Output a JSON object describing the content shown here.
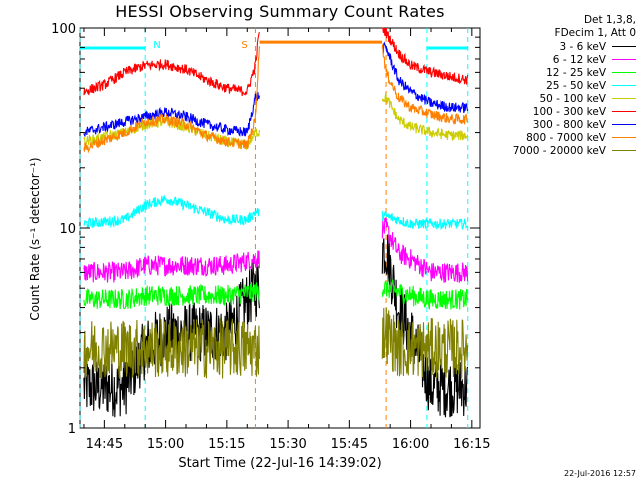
{
  "chart_data": {
    "type": "line",
    "title": "HESSI Observing Summary Count Rates",
    "xlabel": "Start Time (22-Jul-16 14:39:02)",
    "ylabel": "Count Rate (s⁻¹ detector⁻¹)",
    "yscale": "log",
    "ylim": [
      1,
      100
    ],
    "xlim": [
      "14:39:02",
      "16:17:00"
    ],
    "x_ticks": [
      "14:45",
      "15:00",
      "15:15",
      "15:30",
      "15:45",
      "16:00",
      "16:15"
    ],
    "y_ticks": [
      "1",
      "10",
      "100"
    ],
    "legend_header": [
      "Det 1,3,8,",
      "FDecim 1, Att 0"
    ],
    "legend_position": "outside-right",
    "markers": [
      {
        "label": "N",
        "time": "14:55",
        "color": "#00ffff"
      },
      {
        "label": "S",
        "time": "15:22",
        "color": "#ff8000"
      }
    ],
    "night_intervals": [
      [
        "14:39",
        "14:55"
      ],
      [
        "16:04",
        "16:14"
      ]
    ],
    "saa_intervals": [
      [
        "15:22",
        "15:54"
      ]
    ],
    "data_gaps": [
      [
        "15:23",
        "15:53"
      ]
    ],
    "series": [
      {
        "name": "3 - 6 keV",
        "color": "#000000",
        "x": [
          "14:40",
          "14:50",
          "14:55",
          "15:00",
          "15:10",
          "15:15",
          "15:22",
          "15:54",
          "15:57",
          "16:00",
          "16:05",
          "16:10",
          "16:14"
        ],
        "y": [
          1.6,
          1.6,
          2.5,
          3.0,
          3.0,
          3.0,
          5.0,
          8.0,
          4.0,
          3.0,
          1.6,
          1.6,
          1.6
        ]
      },
      {
        "name": "6 - 12 keV",
        "color": "#ff00ff",
        "x": [
          "14:40",
          "14:50",
          "14:55",
          "15:00",
          "15:10",
          "15:15",
          "15:22",
          "15:54",
          "15:57",
          "16:00",
          "16:05",
          "16:10",
          "16:14"
        ],
        "y": [
          6.0,
          6.0,
          6.5,
          6.5,
          6.5,
          6.5,
          7.0,
          10.0,
          7.5,
          7.0,
          6.0,
          6.0,
          6.0
        ]
      },
      {
        "name": "12 - 25 keV",
        "color": "#00ff00",
        "x": [
          "14:40",
          "14:50",
          "14:55",
          "15:00",
          "15:10",
          "15:15",
          "15:22",
          "15:54",
          "15:57",
          "16:00",
          "16:05",
          "16:10",
          "16:14"
        ],
        "y": [
          4.4,
          4.4,
          4.6,
          4.6,
          4.6,
          4.6,
          4.8,
          5.0,
          4.8,
          4.6,
          4.4,
          4.4,
          4.4
        ]
      },
      {
        "name": "25 - 50 keV",
        "color": "#00ffff",
        "x": [
          "14:40",
          "14:50",
          "14:55",
          "15:00",
          "15:05",
          "15:10",
          "15:15",
          "15:20",
          "15:22",
          "15:54",
          "15:57",
          "16:00",
          "16:05",
          "16:10",
          "16:14"
        ],
        "y": [
          10.5,
          11.0,
          13.0,
          14.0,
          13.0,
          12.0,
          11.0,
          11.0,
          12.0,
          11.5,
          11.0,
          10.5,
          10.5,
          10.5,
          10.5
        ]
      },
      {
        "name": "50 - 100 keV",
        "color": "#cccc00",
        "x": [
          "14:40",
          "14:50",
          "14:55",
          "15:00",
          "15:05",
          "15:10",
          "15:15",
          "15:20",
          "15:22",
          "15:54",
          "15:57",
          "16:00",
          "16:05",
          "16:10",
          "16:14"
        ],
        "y": [
          27.0,
          30.0,
          33.0,
          34.0,
          32.0,
          29.0,
          27.0,
          26.0,
          30.0,
          45.0,
          35.0,
          32.0,
          30.0,
          29.0,
          29.0
        ]
      },
      {
        "name": "100 - 300 keV",
        "color": "#ff0000",
        "x": [
          "14:40",
          "14:45",
          "14:50",
          "14:55",
          "15:00",
          "15:05",
          "15:10",
          "15:15",
          "15:20",
          "15:22",
          "15:23",
          "15:53",
          "15:54",
          "15:57",
          "16:00",
          "16:05",
          "16:10",
          "16:14"
        ],
        "y": [
          48.0,
          52.0,
          60.0,
          65.0,
          66.0,
          62.0,
          55.0,
          50.0,
          48.0,
          65.0,
          100.0,
          100.0,
          95.0,
          75.0,
          65.0,
          60.0,
          57.0,
          55.0
        ]
      },
      {
        "name": "300 - 800 keV",
        "color": "#0000ff",
        "x": [
          "14:40",
          "14:50",
          "14:55",
          "15:00",
          "15:05",
          "15:10",
          "15:15",
          "15:20",
          "15:22",
          "15:54",
          "15:57",
          "16:00",
          "16:05",
          "16:10",
          "16:14"
        ],
        "y": [
          30.0,
          34.0,
          36.0,
          38.0,
          36.0,
          33.0,
          31.0,
          30.0,
          45.0,
          80.0,
          55.0,
          48.0,
          42.0,
          40.0,
          40.0
        ]
      },
      {
        "name": "800 - 7000 keV",
        "color": "#ff8000",
        "x": [
          "14:40",
          "14:50",
          "14:55",
          "15:00",
          "15:05",
          "15:10",
          "15:15",
          "15:20",
          "15:22",
          "15:23",
          "15:53",
          "15:54",
          "15:57",
          "16:00",
          "16:05",
          "16:10",
          "16:14"
        ],
        "y": [
          25.0,
          30.0,
          34.0,
          35.0,
          33.0,
          29.0,
          27.0,
          26.0,
          35.0,
          85.0,
          85.0,
          60.0,
          45.0,
          40.0,
          37.0,
          35.0,
          35.0
        ]
      },
      {
        "name": "7000 - 20000 keV",
        "color": "#808000",
        "x": [
          "14:40",
          "14:50",
          "14:55",
          "15:00",
          "15:10",
          "15:15",
          "15:22",
          "15:54",
          "15:57",
          "16:00",
          "16:05",
          "16:10",
          "16:14"
        ],
        "y": [
          2.5,
          2.5,
          2.5,
          2.5,
          2.5,
          2.5,
          2.5,
          3.0,
          2.5,
          2.5,
          2.5,
          2.5,
          2.5
        ]
      }
    ]
  },
  "footer": {
    "timestamp": "22-Jul-2016 12:57"
  }
}
